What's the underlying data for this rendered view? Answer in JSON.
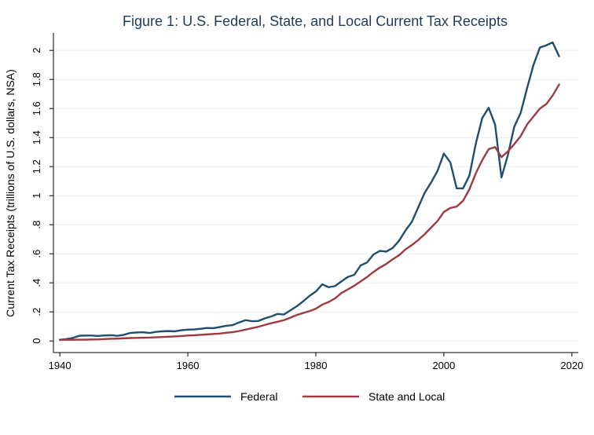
{
  "chart_data": {
    "type": "line",
    "title": "Figure 1: U.S. Federal, State, and Local Current Tax Receipts",
    "xlabel": "",
    "ylabel": "Current Tax Receipts (trillions of U.S. dollars, NSA)",
    "xlim": [
      1939,
      2021
    ],
    "ylim": [
      -0.08,
      2.12
    ],
    "xticks": [
      1940,
      1960,
      1980,
      2000,
      2020
    ],
    "yticks": [
      0,
      0.2,
      0.4,
      0.6,
      0.8,
      1,
      1.2,
      1.4,
      1.6,
      1.8,
      2
    ],
    "ytick_labels": [
      "0",
      ".2",
      ".4",
      ".6",
      ".8",
      "1",
      "1.2",
      "1.4",
      "1.6",
      "1.8",
      "2"
    ],
    "grid": true,
    "legend_position": "bottom",
    "x": [
      1940,
      1941,
      1942,
      1943,
      1944,
      1945,
      1946,
      1947,
      1948,
      1949,
      1950,
      1951,
      1952,
      1953,
      1954,
      1955,
      1956,
      1957,
      1958,
      1959,
      1960,
      1961,
      1962,
      1963,
      1964,
      1965,
      1966,
      1967,
      1968,
      1969,
      1970,
      1971,
      1972,
      1973,
      1974,
      1975,
      1976,
      1977,
      1978,
      1979,
      1980,
      1981,
      1982,
      1983,
      1984,
      1985,
      1986,
      1987,
      1988,
      1989,
      1990,
      1991,
      1992,
      1993,
      1994,
      1995,
      1996,
      1997,
      1998,
      1999,
      2000,
      2001,
      2002,
      2003,
      2004,
      2005,
      2006,
      2007,
      2008,
      2009,
      2010,
      2011,
      2012,
      2013,
      2014,
      2015,
      2016,
      2017,
      2018
    ],
    "series": [
      {
        "name": "Federal",
        "color": "#1f4e6e",
        "values": [
          0.008,
          0.013,
          0.02,
          0.035,
          0.037,
          0.037,
          0.034,
          0.038,
          0.039,
          0.035,
          0.042,
          0.055,
          0.058,
          0.06,
          0.055,
          0.062,
          0.066,
          0.068,
          0.066,
          0.074,
          0.078,
          0.079,
          0.084,
          0.089,
          0.088,
          0.096,
          0.104,
          0.109,
          0.127,
          0.143,
          0.136,
          0.137,
          0.155,
          0.168,
          0.186,
          0.182,
          0.21,
          0.238,
          0.272,
          0.31,
          0.34,
          0.39,
          0.37,
          0.378,
          0.41,
          0.44,
          0.455,
          0.52,
          0.54,
          0.595,
          0.62,
          0.615,
          0.64,
          0.69,
          0.76,
          0.82,
          0.92,
          1.02,
          1.09,
          1.17,
          1.29,
          1.23,
          1.05,
          1.05,
          1.14,
          1.36,
          1.535,
          1.605,
          1.49,
          1.125,
          1.28,
          1.475,
          1.57,
          1.74,
          1.9,
          2.02,
          2.035,
          2.055,
          1.96
        ]
      },
      {
        "name": "State and Local",
        "color": "#9e3a40",
        "values": [
          0.008,
          0.008,
          0.008,
          0.009,
          0.009,
          0.01,
          0.011,
          0.013,
          0.015,
          0.016,
          0.018,
          0.02,
          0.021,
          0.022,
          0.023,
          0.025,
          0.027,
          0.029,
          0.031,
          0.034,
          0.037,
          0.039,
          0.042,
          0.045,
          0.048,
          0.051,
          0.056,
          0.06,
          0.068,
          0.078,
          0.088,
          0.097,
          0.11,
          0.122,
          0.132,
          0.143,
          0.16,
          0.178,
          0.192,
          0.205,
          0.222,
          0.25,
          0.268,
          0.293,
          0.33,
          0.355,
          0.38,
          0.41,
          0.44,
          0.475,
          0.505,
          0.53,
          0.562,
          0.59,
          0.63,
          0.66,
          0.695,
          0.735,
          0.78,
          0.825,
          0.888,
          0.915,
          0.925,
          0.965,
          1.045,
          1.155,
          1.245,
          1.32,
          1.335,
          1.265,
          1.305,
          1.355,
          1.41,
          1.49,
          1.545,
          1.6,
          1.63,
          1.69,
          1.765
        ]
      }
    ]
  }
}
